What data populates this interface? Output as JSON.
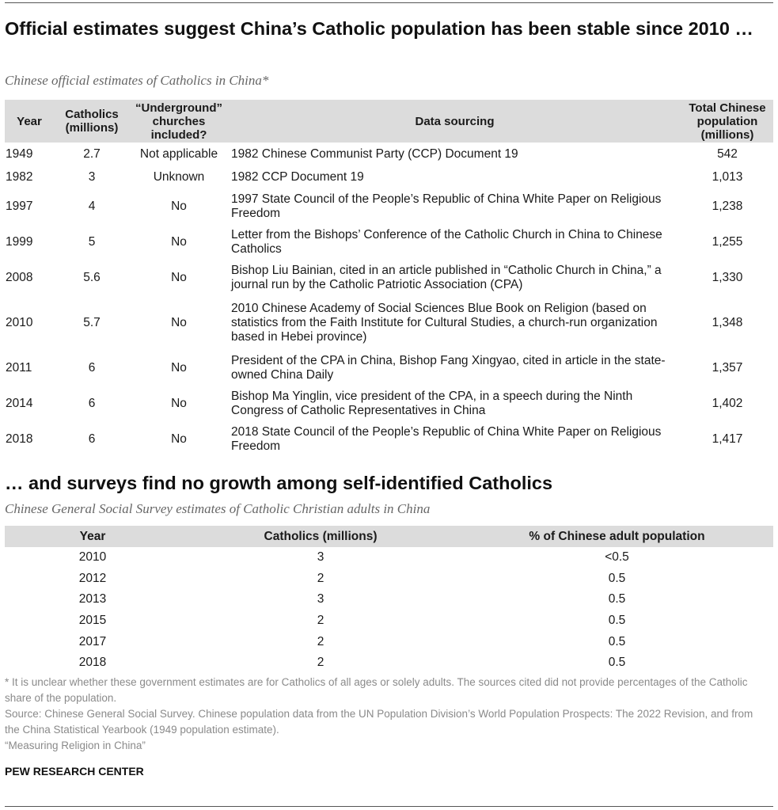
{
  "title_main": "Official estimates suggest China’s Catholic population has been stable since 2010 …",
  "subtitle_main": "Chinese official estimates of Catholics in China*",
  "official_table": {
    "headers": [
      "Year",
      "Catholics (millions)",
      "“Underground” churches included?",
      "Data sourcing",
      "Total Chinese population (millions)"
    ],
    "rows": [
      {
        "year": "1949",
        "catholics": "2.7",
        "underground": "Not applicable",
        "source": "1982 Chinese Communist Party (CCP) Document 19",
        "population": "542"
      },
      {
        "year": "1982",
        "catholics": "3",
        "underground": "Unknown",
        "source": "1982 CCP Document 19",
        "population": "1,013"
      },
      {
        "year": "1997",
        "catholics": "4",
        "underground": "No",
        "source": "1997 State Council of the People’s Republic of China White Paper on Religious Freedom",
        "population": "1,238"
      },
      {
        "year": "1999",
        "catholics": "5",
        "underground": "No",
        "source": "Letter from the Bishops’ Conference of the Catholic Church in China to Chinese Catholics",
        "population": "1,255"
      },
      {
        "year": "2008",
        "catholics": "5.6",
        "underground": "No",
        "source": "Bishop Liu Bainian, cited in an article published in “Catholic Church in China,” a journal run by the Catholic Patriotic Association (CPA)",
        "population": "1,330"
      },
      {
        "year": "2010",
        "catholics": "5.7",
        "underground": "No",
        "source": "2010 Chinese Academy of Social Sciences Blue Book on Religion (based on statistics from the Faith Institute for Cultural Studies, a church-run organization based in Hebei province)",
        "population": "1,348"
      },
      {
        "year": "2011",
        "catholics": "6",
        "underground": "No",
        "source": "President of the CPA in China, Bishop Fang Xingyao, cited in article in the state-owned China Daily",
        "population": "1,357"
      },
      {
        "year": "2014",
        "catholics": "6",
        "underground": "No",
        "source": "Bishop Ma Yinglin, vice president of the CPA, in a speech during the Ninth Congress of Catholic Representatives in China",
        "population": "1,402"
      },
      {
        "year": "2018",
        "catholics": "6",
        "underground": "No",
        "source": "2018 State Council of the People’s Republic of China White Paper on Religious Freedom",
        "population": "1,417"
      }
    ]
  },
  "title_second": "… and surveys find no growth among self-identified Catholics",
  "subtitle_second": "Chinese General Social Survey estimates of Catholic Christian adults in China",
  "survey_table": {
    "headers": [
      "Year",
      "Catholics (millions)",
      "% of Chinese adult population"
    ],
    "rows": [
      {
        "year": "2010",
        "catholics": "3",
        "percent": "<0.5"
      },
      {
        "year": "2012",
        "catholics": "2",
        "percent": "0.5"
      },
      {
        "year": "2013",
        "catholics": "3",
        "percent": "0.5"
      },
      {
        "year": "2015",
        "catholics": "2",
        "percent": "0.5"
      },
      {
        "year": "2017",
        "catholics": "2",
        "percent": "0.5"
      },
      {
        "year": "2018",
        "catholics": "2",
        "percent": "0.5"
      }
    ]
  },
  "notes": {
    "footnote": "* It is unclear whether these government estimates are for Catholics of all ages or solely adults. The sources cited did not provide percentages of the Catholic share of the population.",
    "source": "Source: Chinese General Social Survey. Chinese population data from the UN Population Division’s World Population Prospects: The 2022 Revision, and from the China Statistical Yearbook (1949 population estimate).",
    "report": "“Measuring Religion in China”"
  },
  "brand": "PEW RESEARCH CENTER"
}
